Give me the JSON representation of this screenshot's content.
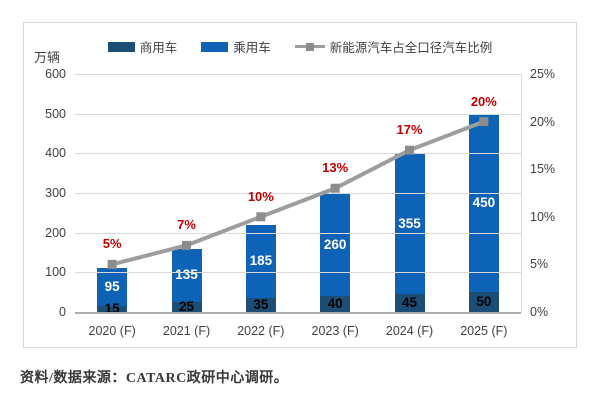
{
  "unit_label": "万辆",
  "legend": [
    {
      "id": "commercial",
      "label": "商用车",
      "type": "bar",
      "color": "#1c4d74"
    },
    {
      "id": "passenger",
      "label": "乘用车",
      "type": "bar",
      "color": "#0e63b6"
    },
    {
      "id": "nev-share",
      "label": "新能源汽车占全口径汽车比例",
      "type": "line",
      "color": "#9d9d9d",
      "marker_color": "#8c8c8c"
    }
  ],
  "source_note": "资料/数据来源：CATARC政研中心调研。",
  "chart_data": {
    "type": "bar",
    "subtype": "stacked-bars-with-line",
    "title": "",
    "ylabel_left": "万辆",
    "categories": [
      "2020 (F)",
      "2021 (F)",
      "2022 (F)",
      "2023 (F)",
      "2024 (F)",
      "2025 (F)"
    ],
    "series": [
      {
        "id": "commercial",
        "name": "商用车",
        "type": "bar",
        "stack": "bottom",
        "color": "#1c4d74",
        "values": [
          15,
          25,
          35,
          40,
          45,
          50
        ],
        "label_color": "#000000"
      },
      {
        "id": "passenger",
        "name": "乘用车",
        "type": "bar",
        "stack": "top",
        "color": "#0e63b6",
        "values": [
          95,
          135,
          185,
          260,
          355,
          450
        ],
        "label_color": "#ffffff"
      },
      {
        "id": "nev-share",
        "name": "新能源汽车占全口径汽车比例",
        "type": "line",
        "color": "#9d9d9d",
        "marker_color": "#8c8c8c",
        "values_pct": [
          5,
          7,
          10,
          13,
          17,
          20
        ],
        "labels": [
          "5%",
          "7%",
          "10%",
          "13%",
          "17%",
          "20%"
        ],
        "label_color": "#c00000"
      }
    ],
    "left_axis": {
      "ticks": [
        0,
        100,
        200,
        300,
        400,
        500,
        600
      ],
      "min": 0,
      "max": 600
    },
    "right_axis": {
      "ticks_pct": [
        0,
        5,
        10,
        15,
        20,
        25
      ],
      "tick_labels": [
        "0%",
        "5%",
        "10%",
        "15%",
        "20%",
        "25%"
      ],
      "min_pct": 0,
      "max_pct": 25
    },
    "grid": "horizontal",
    "legend_position": "top",
    "colors": {
      "grid": "#d9d9d9",
      "axis": "#adadad",
      "text": "#404040",
      "pct_label": "#c00000",
      "border": "#d6d6d6"
    }
  }
}
